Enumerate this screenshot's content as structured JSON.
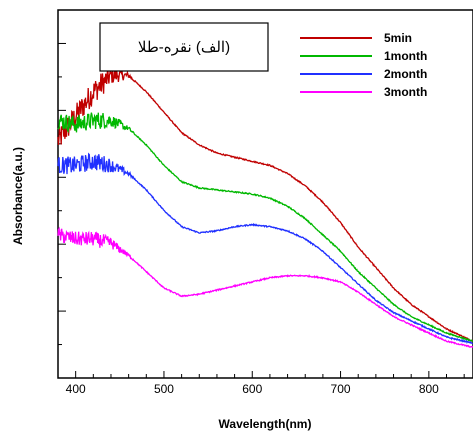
{
  "chart_data": {
    "type": "line",
    "xlabel": "Wavelength(nm)",
    "ylabel": "Absorbance(a.u.)",
    "inset_label": "(الف) نقره-طلا",
    "xlim": [
      380,
      850
    ],
    "x_ticks": [
      400,
      500,
      600,
      700,
      800
    ],
    "y_tick_labels_shown": false,
    "grid": false,
    "legend_position": "top-right",
    "series": [
      {
        "name": "5min",
        "color": "#c00000",
        "x": [
          380,
          400,
          420,
          440,
          460,
          480,
          500,
          520,
          540,
          560,
          580,
          600,
          620,
          640,
          660,
          680,
          700,
          720,
          740,
          760,
          780,
          800,
          820,
          850
        ],
        "y": [
          0.58,
          0.64,
          0.7,
          0.74,
          0.74,
          0.7,
          0.65,
          0.6,
          0.57,
          0.55,
          0.54,
          0.53,
          0.52,
          0.5,
          0.47,
          0.43,
          0.38,
          0.32,
          0.27,
          0.22,
          0.18,
          0.15,
          0.12,
          0.09
        ],
        "noise_below_x": 470,
        "noise_amplitude": 0.03
      },
      {
        "name": "1month",
        "color": "#00b800",
        "x": [
          380,
          400,
          420,
          440,
          460,
          480,
          500,
          520,
          540,
          560,
          580,
          600,
          620,
          640,
          660,
          680,
          700,
          720,
          740,
          760,
          780,
          800,
          820,
          850
        ],
        "y": [
          0.63,
          0.62,
          0.63,
          0.63,
          0.61,
          0.57,
          0.52,
          0.48,
          0.465,
          0.46,
          0.455,
          0.45,
          0.44,
          0.42,
          0.39,
          0.35,
          0.31,
          0.26,
          0.22,
          0.18,
          0.15,
          0.13,
          0.11,
          0.09
        ],
        "noise_below_x": 470,
        "noise_amplitude": 0.022
      },
      {
        "name": "2month",
        "color": "#2030ff",
        "x": [
          380,
          400,
          420,
          440,
          460,
          480,
          500,
          520,
          540,
          560,
          580,
          600,
          620,
          640,
          660,
          680,
          700,
          720,
          740,
          760,
          780,
          800,
          820,
          850
        ],
        "y": [
          0.52,
          0.52,
          0.53,
          0.52,
          0.5,
          0.46,
          0.41,
          0.37,
          0.355,
          0.36,
          0.37,
          0.375,
          0.37,
          0.36,
          0.34,
          0.31,
          0.27,
          0.23,
          0.19,
          0.16,
          0.14,
          0.12,
          0.1,
          0.085
        ],
        "noise_below_x": 470,
        "noise_amplitude": 0.022
      },
      {
        "name": "3month",
        "color": "#ff00ff",
        "x": [
          380,
          400,
          420,
          440,
          460,
          480,
          500,
          520,
          540,
          560,
          580,
          600,
          620,
          640,
          660,
          680,
          700,
          720,
          740,
          760,
          780,
          800,
          820,
          850
        ],
        "y": [
          0.35,
          0.34,
          0.34,
          0.33,
          0.3,
          0.26,
          0.22,
          0.2,
          0.205,
          0.215,
          0.225,
          0.235,
          0.245,
          0.25,
          0.25,
          0.245,
          0.235,
          0.21,
          0.18,
          0.15,
          0.13,
          0.11,
          0.09,
          0.075
        ],
        "noise_below_x": 470,
        "noise_amplitude": 0.018
      }
    ]
  }
}
